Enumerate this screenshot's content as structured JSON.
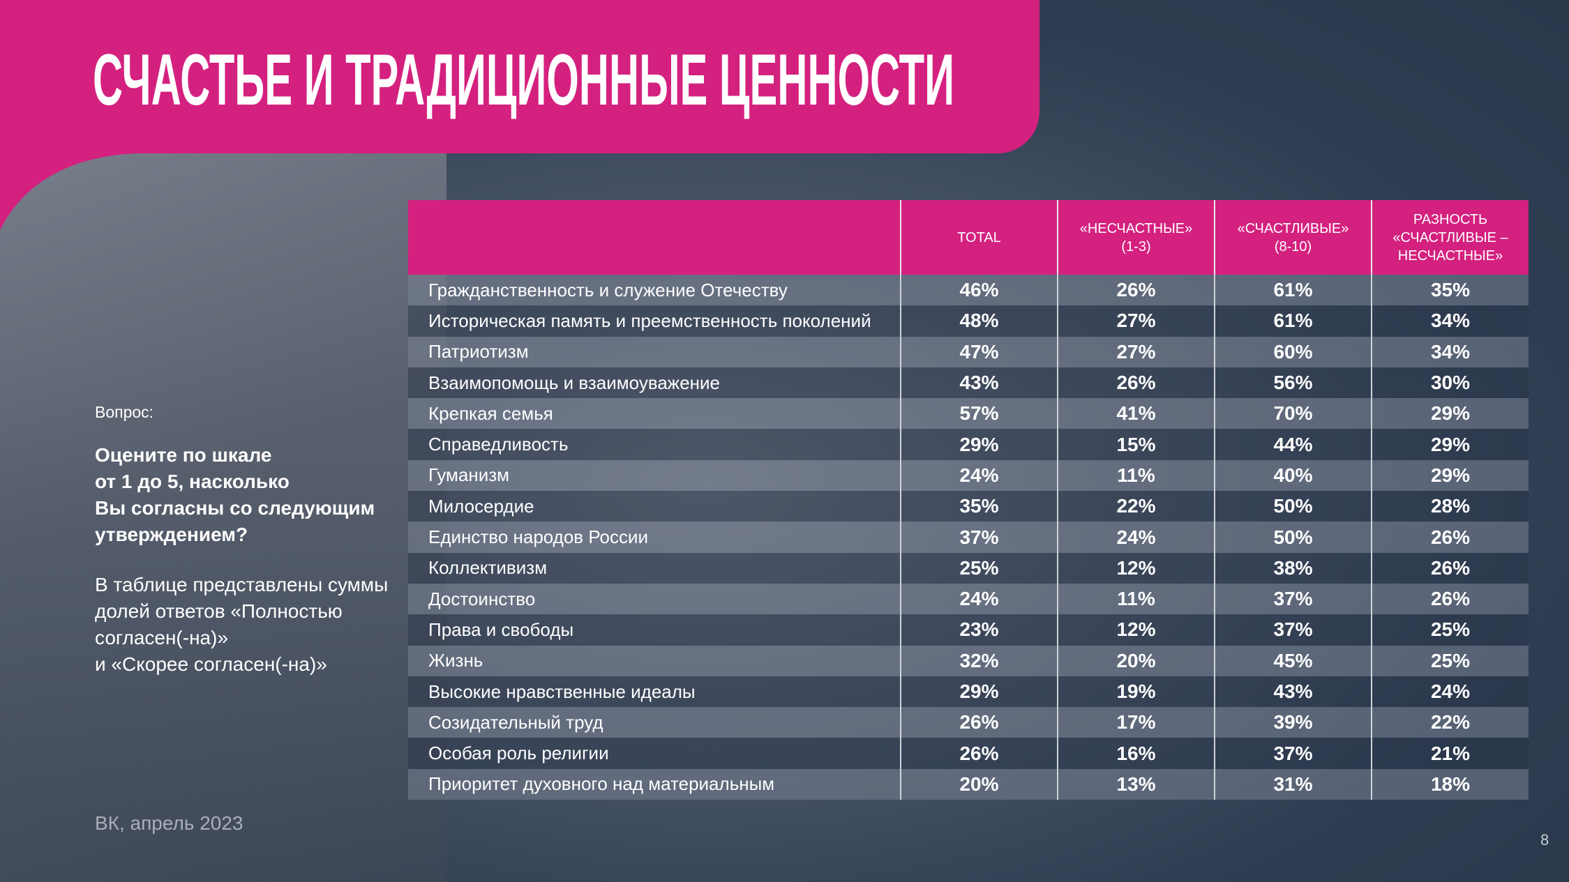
{
  "header": {
    "title": "СЧАСТЬЕ И ТРАДИЦИОННЫЕ ЦЕННОСТИ"
  },
  "sidebar": {
    "question_label": "Вопрос:",
    "question": [
      "Оцените по шкале",
      "от 1 до 5, насколько",
      "Вы согласны со следующим",
      "утверждением?"
    ],
    "note": [
      "В таблице представлены суммы",
      "долей ответов «Полностью",
      "согласен(-на)»",
      "и «Скорее согласен(-на)»"
    ],
    "source": "ВК, апрель 2023"
  },
  "table": {
    "columns": [
      [],
      [
        "TOTAL"
      ],
      [
        "«НЕСЧАСТНЫЕ»",
        "(1-3)"
      ],
      [
        "«СЧАСТЛИВЫЕ»",
        "(8-10)"
      ],
      [
        "РАЗНОСТЬ",
        "«СЧАСТЛИВЫЕ –",
        "НЕСЧАСТНЫЕ»"
      ]
    ],
    "rows": [
      [
        "Гражданственность и служение Отечеству",
        "46%",
        "26%",
        "61%",
        "35%"
      ],
      [
        "Историческая память и преемственность поколений",
        "48%",
        "27%",
        "61%",
        "34%"
      ],
      [
        "Патриотизм",
        "47%",
        "27%",
        "60%",
        "34%"
      ],
      [
        "Взаимопомощь и взаимоуважение",
        "43%",
        "26%",
        "56%",
        "30%"
      ],
      [
        "Крепкая семья",
        "57%",
        "41%",
        "70%",
        "29%"
      ],
      [
        "Справедливость",
        "29%",
        "15%",
        "44%",
        "29%"
      ],
      [
        "Гуманизм",
        "24%",
        "11%",
        "40%",
        "29%"
      ],
      [
        "Милосердие",
        "35%",
        "22%",
        "50%",
        "28%"
      ],
      [
        "Единство народов России",
        "37%",
        "24%",
        "50%",
        "26%"
      ],
      [
        "Коллективизм",
        "25%",
        "12%",
        "38%",
        "26%"
      ],
      [
        "Достоинство",
        "24%",
        "11%",
        "37%",
        "26%"
      ],
      [
        "Права и свободы",
        "23%",
        "12%",
        "37%",
        "25%"
      ],
      [
        "Жизнь",
        "32%",
        "20%",
        "45%",
        "25%"
      ],
      [
        "Высокие нравственные идеалы",
        "29%",
        "19%",
        "43%",
        "24%"
      ],
      [
        "Созидательный труд",
        "26%",
        "17%",
        "39%",
        "22%"
      ],
      [
        "Особая роль религии",
        "26%",
        "16%",
        "37%",
        "21%"
      ],
      [
        "Приоритет духовного над материальным",
        "20%",
        "13%",
        "31%",
        "18%"
      ]
    ]
  },
  "footer": {
    "page_number": "8"
  }
}
